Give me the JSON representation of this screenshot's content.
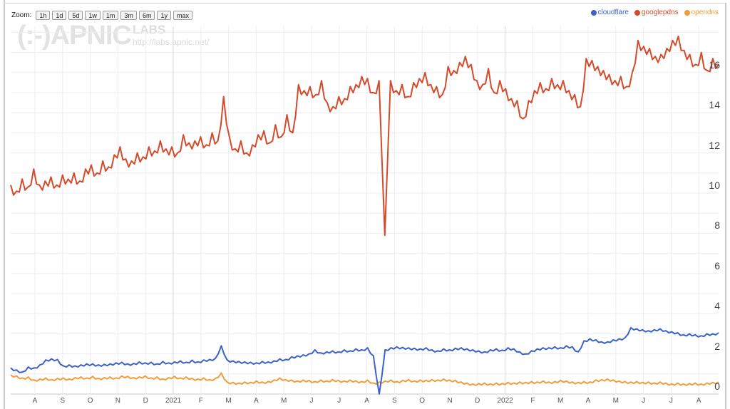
{
  "zoom": {
    "label": "Zoom:",
    "buttons": [
      "1h",
      "1d",
      "5d",
      "1w",
      "1m",
      "3m",
      "6m",
      "1y",
      "max"
    ]
  },
  "watermark": {
    "logo": "(:-)APNIC",
    "labs": "LABS",
    "url": "http://labs.apnic.net/"
  },
  "legend": [
    {
      "name": "cloudflare",
      "color": "#3b62c9"
    },
    {
      "name": "googlepdns",
      "color": "#d44a2a"
    },
    {
      "name": "opendns",
      "color": "#f29d38"
    }
  ],
  "chart_data": {
    "type": "line",
    "title": "",
    "xlabel": "",
    "ylabel": "",
    "ylim": [
      0,
      18
    ],
    "yticks": [
      0,
      2,
      4,
      6,
      8,
      10,
      12,
      14,
      16
    ],
    "grid": true,
    "legend_position": "top-right",
    "x_range": [
      "2020-07-05",
      "2022-08-22"
    ],
    "x_tick_labels": [
      "A",
      "S",
      "O",
      "N",
      "D",
      "2021",
      "F",
      "M",
      "A",
      "M",
      "J",
      "J",
      "A",
      "S",
      "O",
      "N",
      "D",
      "2022",
      "F",
      "M",
      "A",
      "M",
      "J",
      "J",
      "A"
    ],
    "sampling": "weekly, starting 2020-07-05",
    "series": [
      {
        "name": "googlepdns",
        "color": "#d44a2a",
        "values": [
          10.4,
          10.1,
          10.7,
          10.3,
          11.2,
          10.4,
          10.6,
          10.8,
          10.4,
          10.9,
          10.7,
          11.0,
          10.6,
          11.2,
          11.4,
          11.0,
          11.6,
          11.3,
          11.9,
          12.3,
          11.7,
          11.6,
          12.0,
          11.8,
          12.3,
          12.1,
          12.6,
          12.2,
          12.3,
          12.0,
          12.9,
          12.5,
          12.6,
          12.8,
          12.4,
          13.0,
          12.6,
          14.8,
          12.8,
          12.2,
          12.6,
          12.0,
          12.4,
          12.9,
          13.1,
          12.5,
          13.4,
          12.8,
          13.9,
          13.0,
          15.4,
          15.1,
          15.3,
          14.9,
          15.6,
          14.5,
          14.3,
          14.8,
          14.7,
          15.3,
          15.4,
          15.8,
          15.7,
          15.0,
          15.6,
          7.9,
          15.6,
          15.1,
          15.4,
          14.8,
          15.5,
          15.7,
          16.0,
          15.4,
          15.3,
          14.9,
          16.3,
          16.1,
          16.5,
          16.8,
          16.4,
          15.6,
          15.4,
          16.2,
          15.0,
          15.6,
          15.2,
          14.7,
          14.6,
          13.7,
          14.6,
          15.1,
          15.5,
          15.2,
          15.7,
          15.4,
          15.6,
          15.1,
          14.9,
          14.3,
          16.7,
          16.6,
          16.3,
          16.1,
          15.9,
          15.6,
          15.8,
          15.3,
          16.0,
          17.6,
          17.3,
          17.2,
          16.8,
          16.9,
          17.2,
          17.6,
          17.8,
          17.1,
          16.9,
          16.4,
          17.0,
          16.1,
          16.7,
          16.4
        ]
      },
      {
        "name": "cloudflare",
        "color": "#3b62c9",
        "values": [
          1.3,
          1.2,
          1.1,
          1.35,
          1.3,
          1.45,
          1.7,
          1.75,
          1.72,
          1.4,
          1.45,
          1.4,
          1.45,
          1.5,
          1.5,
          1.45,
          1.48,
          1.5,
          1.55,
          1.58,
          1.5,
          1.52,
          1.6,
          1.55,
          1.58,
          1.5,
          1.62,
          1.55,
          1.6,
          1.65,
          1.58,
          1.68,
          1.6,
          1.7,
          1.72,
          1.78,
          2.4,
          1.7,
          1.65,
          1.62,
          1.6,
          1.58,
          1.55,
          1.62,
          1.6,
          1.65,
          1.75,
          1.72,
          1.85,
          1.9,
          1.95,
          2.0,
          2.2,
          2.05,
          2.1,
          2.15,
          2.1,
          2.2,
          2.15,
          2.25,
          2.2,
          2.3,
          1.9,
          0.0,
          2.2,
          2.3,
          2.35,
          2.32,
          2.3,
          2.28,
          2.25,
          2.3,
          2.2,
          2.15,
          2.25,
          2.2,
          2.28,
          2.3,
          2.25,
          2.2,
          2.15,
          2.1,
          2.2,
          2.25,
          2.18,
          2.3,
          2.25,
          2.1,
          2.0,
          2.15,
          2.25,
          2.3,
          2.3,
          2.35,
          2.3,
          2.4,
          2.35,
          2.1,
          2.65,
          2.75,
          2.7,
          2.6,
          2.6,
          2.7,
          2.75,
          2.8,
          3.3,
          3.25,
          3.2,
          3.15,
          3.2,
          3.25,
          3.15,
          3.1,
          3.05,
          2.95,
          3.0,
          2.95,
          2.9,
          3.0,
          3.0,
          3.05
        ]
      },
      {
        "name": "opendns",
        "color": "#f29d38",
        "values": [
          0.95,
          0.9,
          0.8,
          0.85,
          0.7,
          0.75,
          0.8,
          0.72,
          0.78,
          0.8,
          0.75,
          0.82,
          0.85,
          0.8,
          0.88,
          0.78,
          0.82,
          0.85,
          0.8,
          0.9,
          0.88,
          0.82,
          0.85,
          0.9,
          0.8,
          0.85,
          0.75,
          0.82,
          0.88,
          0.8,
          0.85,
          0.78,
          0.75,
          0.8,
          0.72,
          0.78,
          1.05,
          0.6,
          0.58,
          0.55,
          0.6,
          0.58,
          0.65,
          0.6,
          0.62,
          0.7,
          0.8,
          0.72,
          0.7,
          0.65,
          0.7,
          0.68,
          0.62,
          0.7,
          0.65,
          0.72,
          0.68,
          0.65,
          0.7,
          0.66,
          0.62,
          0.7,
          0.55,
          0.6,
          0.65,
          0.7,
          0.62,
          0.68,
          0.72,
          0.65,
          0.7,
          0.68,
          0.72,
          0.7,
          0.75,
          0.7,
          0.68,
          0.6,
          0.55,
          0.5,
          0.52,
          0.55,
          0.5,
          0.55,
          0.52,
          0.58,
          0.55,
          0.6,
          0.58,
          0.62,
          0.6,
          0.65,
          0.6,
          0.62,
          0.68,
          0.65,
          0.6,
          0.58,
          0.62,
          0.6,
          0.7,
          0.72,
          0.75,
          0.7,
          0.65,
          0.62,
          0.6,
          0.62,
          0.58,
          0.6,
          0.55,
          0.6,
          0.55,
          0.5,
          0.55,
          0.5,
          0.52,
          0.55,
          0.5,
          0.55,
          0.58,
          0.6
        ]
      }
    ]
  }
}
